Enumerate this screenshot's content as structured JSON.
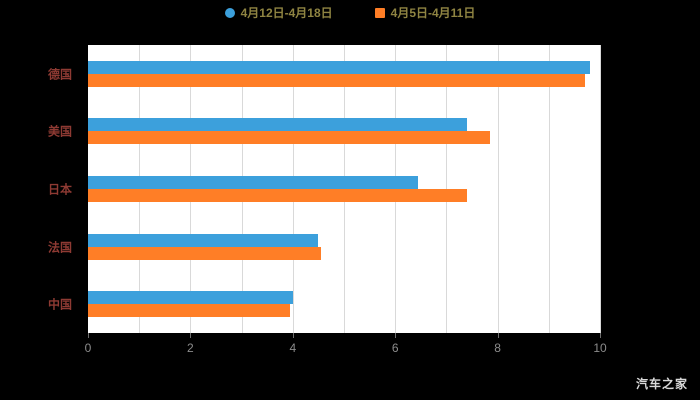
{
  "legend": {
    "items": [
      {
        "label": "4月12日-4月18日",
        "color": "#3ca0dc",
        "shape": "circle"
      },
      {
        "label": "4月5日-4月11日",
        "color": "#ff7e26",
        "shape": "square"
      }
    ]
  },
  "watermark": "汽车之家",
  "colors": {
    "background": "#000000",
    "plot_background": "#ffffff",
    "grid_line": "#d9d9d9",
    "series_blue": "#3ca0dc",
    "series_orange": "#ff7e26",
    "category_label": "#8e3a33",
    "tick_label": "#8c8c8c",
    "legend_label": "#8f8442"
  },
  "chart_data": {
    "type": "bar",
    "orientation": "horizontal",
    "title": "",
    "xlabel": "",
    "ylabel": "",
    "categories": [
      "德国",
      "美国",
      "日本",
      "法国",
      "中国"
    ],
    "series": [
      {
        "name": "4月12日-4月18日",
        "color": "#3ca0dc",
        "values": [
          9.8,
          7.4,
          6.45,
          4.5,
          4.0
        ]
      },
      {
        "name": "4月5日-4月11日",
        "color": "#ff7e26",
        "values": [
          9.7,
          7.85,
          7.4,
          4.55,
          3.95
        ]
      }
    ],
    "xlim": [
      0,
      10
    ],
    "x_ticks": [
      0,
      2,
      4,
      6,
      8,
      10
    ],
    "grid_step": 1,
    "grid": true,
    "legend_position": "top"
  }
}
